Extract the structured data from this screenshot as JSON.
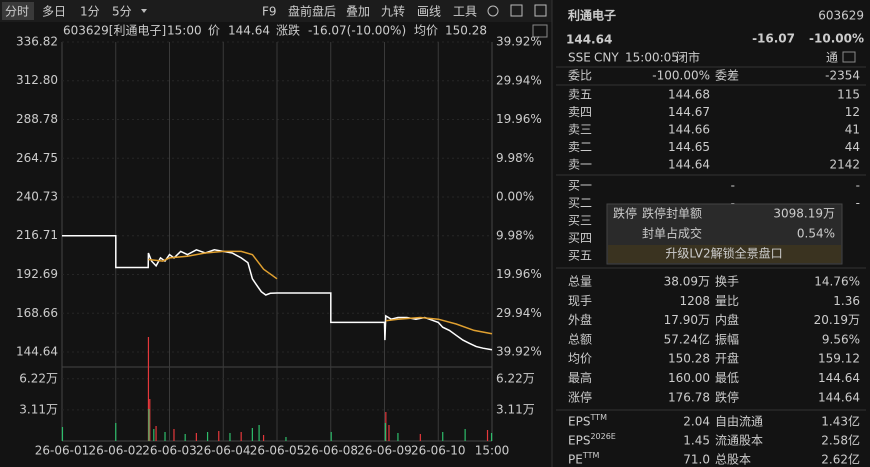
{
  "toolbar": {
    "tabs": [
      "分时",
      "多日",
      "1分",
      "5分"
    ],
    "tools": [
      "F9",
      "盘前盘后",
      "叠加",
      "九转",
      "画线",
      "工具"
    ]
  },
  "chart": {
    "header": {
      "code": "603629[利通电子]",
      "time": "15:00",
      "price_label": "价",
      "price": "144.64",
      "change_label": "涨跌",
      "change": "-16.07(-10.00%)",
      "avg_label": "均价",
      "avg": "150.28"
    },
    "type": "line",
    "ylim": [
      144.64,
      336.82
    ],
    "yticks": [
      144.64,
      168.66,
      192.69,
      216.71,
      240.73,
      264.75,
      288.78,
      {
        "value": 312.8,
        "label": "312.80"
      },
      336.82
    ],
    "y2lim": [
      -39.92,
      39.92
    ],
    "y2ticks": [
      {
        "value": -39.92,
        "label": "39.92%"
      },
      {
        "value": -29.94,
        "label": "29.94%"
      },
      {
        "value": -19.96,
        "label": "19.96%"
      },
      {
        "value": -9.98,
        "label": "9.98%"
      },
      {
        "value": 0,
        "label": "0.00%"
      },
      {
        "value": 9.98,
        "label": "9.98%"
      },
      {
        "value": 19.96,
        "label": "19.96%"
      },
      {
        "value": 29.94,
        "label": "29.94%"
      },
      {
        "value": 39.92,
        "label": "39.92%"
      }
    ],
    "xlim": [
      0,
      1920
    ],
    "xticks": [
      {
        "value": 0,
        "label": "26-06-01"
      },
      {
        "value": 240,
        "label": "26-06-02"
      },
      {
        "value": 480,
        "label": "26-06-03"
      },
      {
        "value": 720,
        "label": "26-06-04"
      },
      {
        "value": 960,
        "label": "26-06-05"
      },
      {
        "value": 1200,
        "label": "26-06-08"
      },
      {
        "value": 1440,
        "label": "26-06-09"
      },
      {
        "value": 1680,
        "label": "26-06-10"
      },
      {
        "value": 1920,
        "label": "15:00"
      }
    ],
    "series": [
      {
        "color": "#ffffff",
        "x": [
          0,
          240,
          240,
          385,
          386,
          400,
          420,
          440,
          460,
          480,
          500,
          530,
          560,
          600,
          640,
          680,
          720,
          760,
          800,
          830,
          850,
          870,
          890,
          910,
          930,
          960,
          960,
          1200,
          1200,
          1440,
          1442,
          1446,
          1470,
          1500,
          1540,
          1580,
          1620,
          1660,
          1680,
          1700,
          1730,
          1760,
          1790,
          1820,
          1850,
          1880,
          1920
        ],
        "values": [
          216.71,
          216.71,
          197,
          197,
          206,
          201,
          198,
          203,
          201,
          205,
          203,
          207,
          205,
          208,
          206,
          208,
          207,
          206,
          203,
          200,
          190,
          186,
          182,
          180,
          181,
          181.2,
          181.2,
          181.2,
          163,
          163,
          152,
          167,
          165,
          166,
          166,
          165,
          166,
          164,
          163,
          160,
          158,
          155,
          152,
          150,
          148,
          147,
          146
        ]
      },
      {
        "color": "#e0a030",
        "x": [
          386,
          450,
          480,
          560,
          640,
          720,
          800,
          850,
          900,
          960,
          null,
          1446,
          1500,
          1600,
          1680,
          1760,
          1840,
          1920
        ],
        "values": [
          202,
          201,
          203,
          204,
          206,
          207,
          207,
          205,
          196,
          190,
          null,
          164,
          165,
          166,
          165,
          162,
          158,
          156
        ]
      }
    ],
    "volume": {
      "ylim": [
        0,
        7.5
      ],
      "yticks": [
        {
          "value": 3.11,
          "label": "3.11万"
        },
        {
          "value": 6.22,
          "label": "6.22万"
        }
      ],
      "series": [
        {
          "color": "#e5383b",
          "x": [
            386,
            392,
            420,
            500,
            600,
            700,
            800,
            900,
            1446,
            1460,
            1600,
            1900
          ],
          "values": [
            10.4,
            4.2,
            1.5,
            1.2,
            0.8,
            1.0,
            0.9,
            0.6,
            2.9,
            1.6,
            0.7,
            1.1
          ]
        },
        {
          "color": "#2ebd6b",
          "x": [
            2,
            240,
            388,
            410,
            460,
            550,
            650,
            750,
            850,
            880,
            1000,
            1202,
            1444,
            1500,
            1700,
            1800,
            1918
          ],
          "values": [
            1.4,
            1.8,
            3.2,
            1.2,
            0.9,
            0.7,
            0.9,
            0.8,
            1.3,
            1.6,
            0.4,
            0.9,
            1.8,
            0.8,
            0.9,
            1.2,
            0.8
          ]
        }
      ]
    }
  },
  "quote": {
    "name": "利通电子",
    "code": "603629",
    "price": "144.64",
    "change": "-16.07",
    "pct": "-10.00%",
    "meta": [
      "SSE",
      "CNY",
      "15:00:05",
      "闭市"
    ],
    "flag": "通"
  },
  "order_book": {
    "summary": [
      "委比",
      "-100.00%",
      "委差",
      "-2354"
    ],
    "asks": [
      [
        "卖五",
        "144.68",
        "115"
      ],
      [
        "卖四",
        "144.67",
        "12"
      ],
      [
        "卖三",
        "144.66",
        "41"
      ],
      [
        "卖二",
        "144.65",
        "44"
      ],
      [
        "卖一",
        "144.64",
        "2142"
      ]
    ],
    "bids": [
      [
        "买一",
        "-",
        "-"
      ],
      [
        "买二",
        "-",
        "-"
      ],
      [
        "买三"
      ],
      [
        "买四"
      ],
      [
        "买五"
      ]
    ]
  },
  "limit_popup": {
    "tag": "跌停",
    "rows": [
      [
        "跌停封单额",
        "3098.19万"
      ],
      [
        "封单占成交",
        "0.54%"
      ]
    ],
    "upgrade": "升级LV2解锁全景盘口"
  },
  "stats": {
    "rows": [
      [
        "总量",
        "38.09万",
        "换手",
        "14.76%"
      ],
      [
        "现手",
        "1208",
        "量比",
        "1.36"
      ],
      [
        "外盘",
        "17.90万",
        "内盘",
        "20.19万"
      ],
      [
        "总额",
        "57.24亿",
        "振幅",
        "9.56%"
      ],
      [
        "均价",
        "150.28",
        "开盘",
        "159.12"
      ],
      [
        "最高",
        "160.00",
        "最低",
        "144.64"
      ],
      [
        "涨停",
        "176.78",
        "跌停",
        "144.64"
      ]
    ],
    "colors": [
      [
        "#dddddd",
        "#dddddd"
      ],
      [
        "#dddddd",
        "#dddddd"
      ],
      [
        "#e5383b",
        "#2ebd6b"
      ],
      [
        "#dddddd",
        "#dddddd"
      ],
      [
        "#2ebd6b",
        "#2ebd6b"
      ],
      [
        "#2ebd6b",
        "#2ebd6b"
      ],
      [
        "#e5383b",
        "#2ebd6b"
      ]
    ]
  },
  "fundamentals": {
    "rows": [
      {
        "label": "EPS",
        "sup": "TTM",
        "value": "2.04",
        "label2": "自由流通",
        "value2": "1.43亿"
      },
      {
        "label": "EPS",
        "sup": "2026E",
        "value": "1.45",
        "label2": "流通股本",
        "value2": "2.58亿"
      },
      {
        "label": "PE",
        "sup": "TTM",
        "value": "71.0",
        "label2": "总股本",
        "value2": "2.62亿"
      }
    ]
  }
}
